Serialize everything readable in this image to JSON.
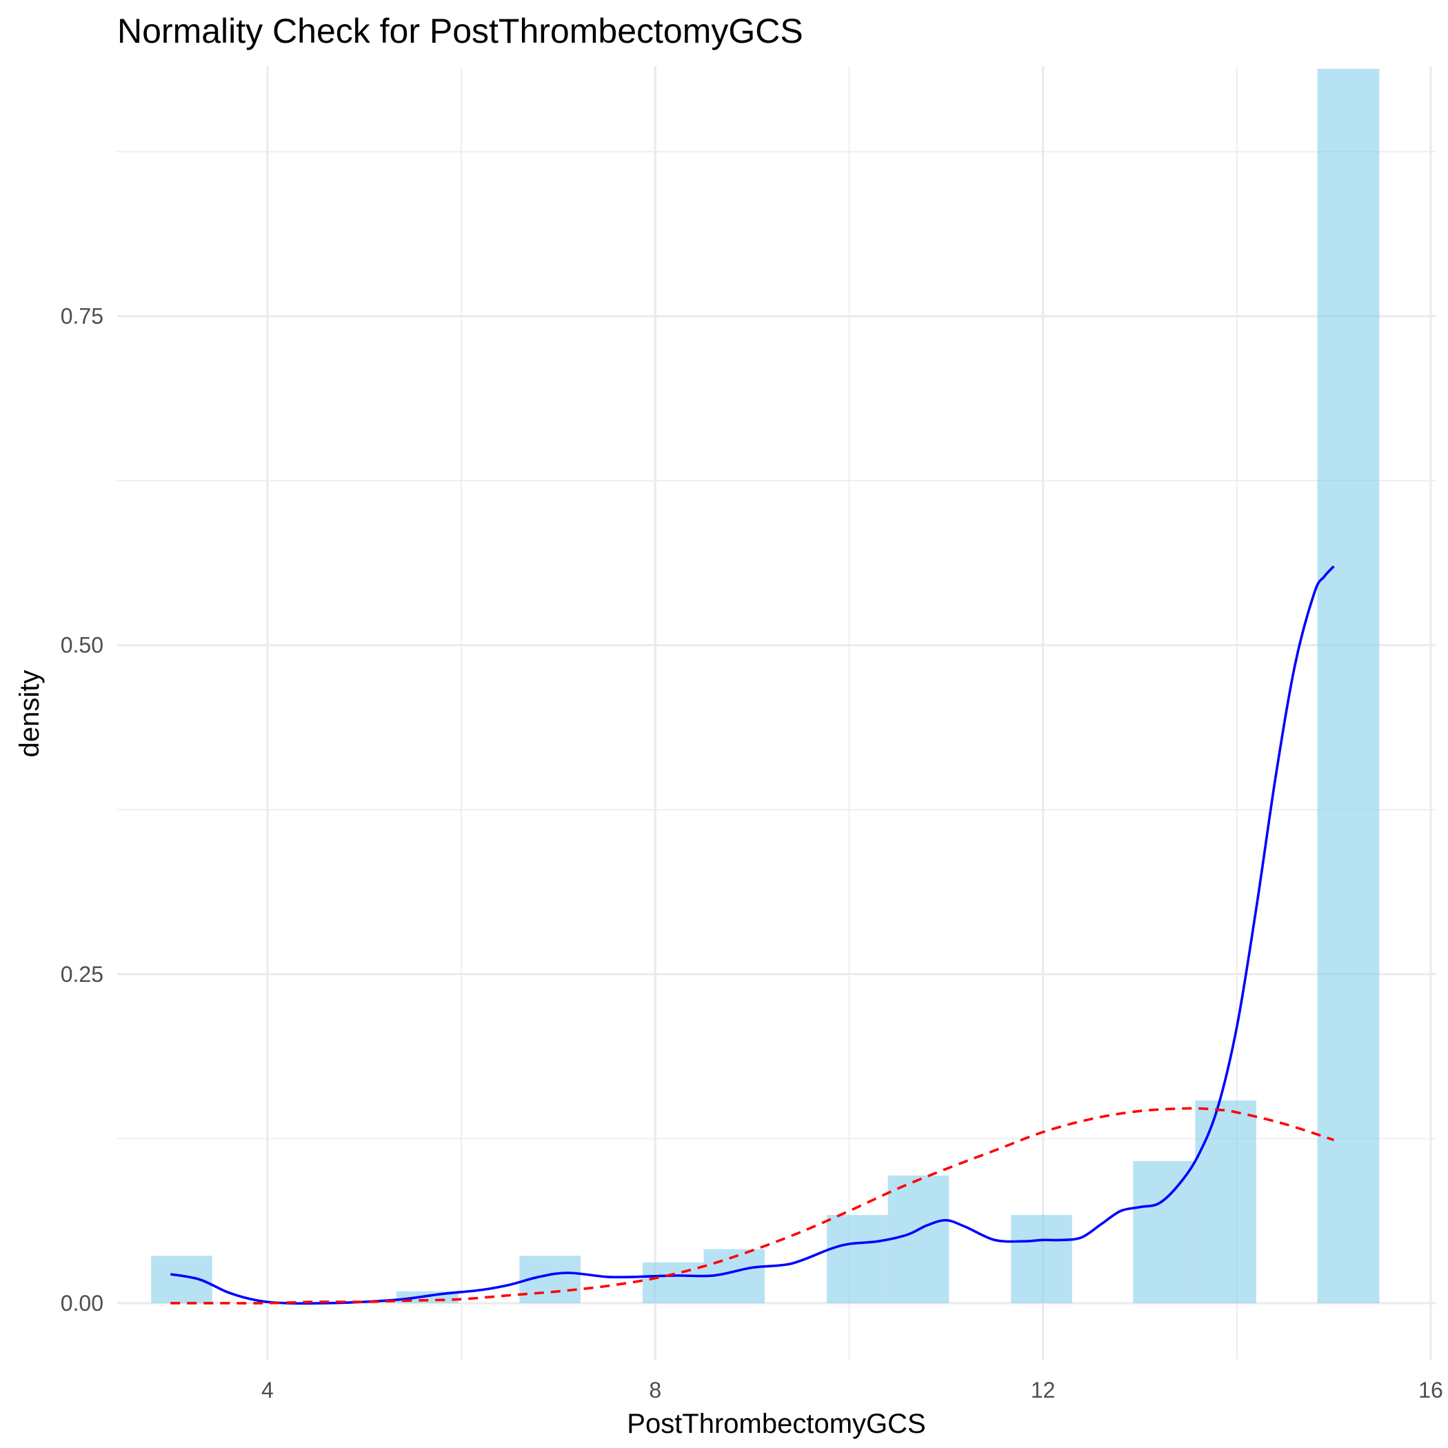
{
  "chart_data": {
    "type": "bar",
    "title": "Normality Check for PostThrombectomyGCS",
    "xlabel": "PostThrombectomyGCS",
    "ylabel": "density",
    "xlim": [
      2.45,
      16.05
    ],
    "ylim": [
      -0.043,
      0.94
    ],
    "x_ticks": [
      4,
      8,
      12,
      16
    ],
    "x_tick_labels": [
      "4",
      "8",
      "12",
      "16"
    ],
    "y_ticks": [
      0.0,
      0.25,
      0.5,
      0.75
    ],
    "y_tick_labels": [
      "0.00",
      "0.25",
      "0.50",
      "0.75"
    ],
    "grid": true,
    "legend": "none",
    "histogram": {
      "name": "histogram",
      "color": "#87CEEB",
      "opacity": 0.6,
      "bins": [
        {
          "start": 2.8,
          "end": 3.43,
          "value": 0.036
        },
        {
          "start": 5.33,
          "end": 5.97,
          "value": 0.009
        },
        {
          "start": 6.6,
          "end": 7.23,
          "value": 0.036
        },
        {
          "start": 7.87,
          "end": 8.5,
          "value": 0.031
        },
        {
          "start": 8.5,
          "end": 9.13,
          "value": 0.041
        },
        {
          "start": 9.77,
          "end": 10.4,
          "value": 0.067
        },
        {
          "start": 10.4,
          "end": 11.03,
          "value": 0.097
        },
        {
          "start": 11.67,
          "end": 12.3,
          "value": 0.067
        },
        {
          "start": 12.93,
          "end": 13.57,
          "value": 0.108
        },
        {
          "start": 13.57,
          "end": 14.2,
          "value": 0.154
        },
        {
          "start": 14.83,
          "end": 15.47,
          "value": 0.938
        }
      ]
    },
    "series": [
      {
        "name": "kernel density",
        "style": "solid",
        "color": "#0000FF",
        "x": [
          3.0,
          3.3,
          3.6,
          3.9,
          4.2,
          4.6,
          5.0,
          5.4,
          5.8,
          6.2,
          6.5,
          6.8,
          7.1,
          7.5,
          7.8,
          8.2,
          8.6,
          9.0,
          9.4,
          9.8,
          10.0,
          10.3,
          10.6,
          10.8,
          11.0,
          11.2,
          11.5,
          11.8,
          12.0,
          12.2,
          12.4,
          12.6,
          12.8,
          13.0,
          13.2,
          13.4,
          13.6,
          13.8,
          14.0,
          14.2,
          14.4,
          14.6,
          14.8,
          14.9,
          15.0
        ],
        "y": [
          0.022,
          0.018,
          0.008,
          0.002,
          0.0,
          0.0,
          0.001,
          0.003,
          0.007,
          0.01,
          0.014,
          0.02,
          0.023,
          0.02,
          0.02,
          0.021,
          0.021,
          0.027,
          0.03,
          0.041,
          0.045,
          0.047,
          0.052,
          0.059,
          0.063,
          0.058,
          0.048,
          0.047,
          0.048,
          0.048,
          0.05,
          0.06,
          0.07,
          0.073,
          0.076,
          0.09,
          0.112,
          0.148,
          0.21,
          0.3,
          0.4,
          0.485,
          0.54,
          0.552,
          0.56
        ]
      },
      {
        "name": "normal curve",
        "style": "dashed",
        "color": "#FF0000",
        "x": [
          3.0,
          3.5,
          4.0,
          4.5,
          5.0,
          5.5,
          6.0,
          6.5,
          7.0,
          7.5,
          8.0,
          8.5,
          9.0,
          9.5,
          10.0,
          10.5,
          11.0,
          11.5,
          12.0,
          12.5,
          13.0,
          13.5,
          13.8,
          14.0,
          14.5,
          15.0
        ],
        "y": [
          0.0,
          0.0,
          0.0,
          0.001,
          0.001,
          0.002,
          0.003,
          0.006,
          0.009,
          0.013,
          0.019,
          0.028,
          0.04,
          0.054,
          0.07,
          0.087,
          0.102,
          0.116,
          0.13,
          0.14,
          0.146,
          0.148,
          0.147,
          0.145,
          0.136,
          0.124
        ]
      }
    ]
  }
}
